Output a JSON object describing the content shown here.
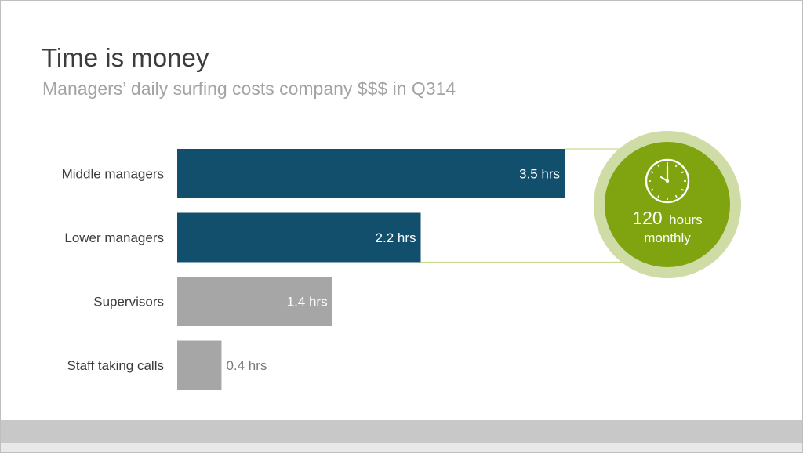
{
  "header": {
    "title": "Time is money",
    "subtitle": "Managers’ daily surfing costs company $$$ in Q314"
  },
  "chart_data": {
    "type": "bar",
    "orientation": "horizontal",
    "categories": [
      "Middle managers",
      "Lower managers",
      "Supervisors",
      "Staff taking calls"
    ],
    "values": [
      3.5,
      2.2,
      1.4,
      0.4
    ],
    "data_labels": [
      "3.5 hrs",
      "2.2 hrs",
      "1.4 hrs",
      "0.4 hrs"
    ],
    "unit": "hrs",
    "xlim": [
      0,
      3.5
    ],
    "grid": false,
    "bar_colors": [
      "#114f6c",
      "#114f6c",
      "#a6a6a6",
      "#a6a6a6"
    ],
    "label_colors": [
      "#ffffff",
      "#ffffff",
      "#ffffff",
      "#7a7a7a"
    ]
  },
  "callout": {
    "number": "120",
    "unit": "hours",
    "period": "monthly",
    "icon": "clock-icon",
    "fill_color": "#7fa40f",
    "ring_color": "#cfdca5",
    "connector_color": "#c9da8e"
  }
}
